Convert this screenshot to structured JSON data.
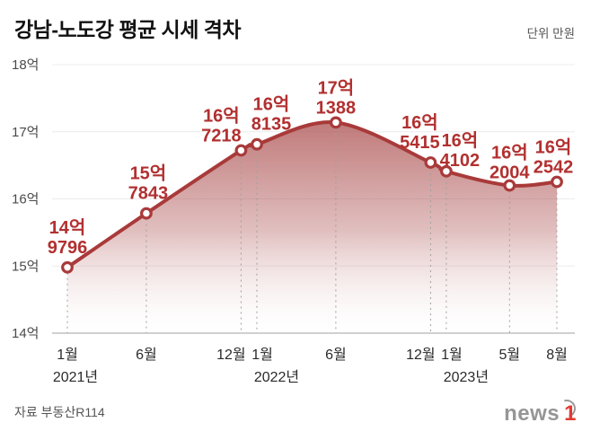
{
  "header": {
    "title": "강남-노도강 평균 시세 격차",
    "unit_label": "단위 만원"
  },
  "footer": {
    "source": "자료 부동산R114",
    "logo": {
      "gray": "news",
      "red": "1"
    }
  },
  "chart_data": {
    "type": "area",
    "title": "강남-노도강 평균 시세 격차",
    "unit": "만원",
    "ylim": [
      140000,
      180000
    ],
    "grid": true,
    "legend": "none",
    "y_ticks": [
      {
        "value": 140000,
        "label": "14억"
      },
      {
        "value": 150000,
        "label": "15억"
      },
      {
        "value": 160000,
        "label": "16억"
      },
      {
        "value": 170000,
        "label": "17억"
      },
      {
        "value": 180000,
        "label": "18억"
      }
    ],
    "points": [
      {
        "month": 0,
        "x_label": "1월",
        "year_label": "2021년",
        "value": 149796,
        "label": [
          "14억",
          "9796"
        ]
      },
      {
        "month": 5,
        "x_label": "6월",
        "value": 157843,
        "label": [
          "15억",
          "7843"
        ]
      },
      {
        "month": 11,
        "x_label": "12월",
        "value": 167218,
        "label": [
          "16억",
          "7218"
        ]
      },
      {
        "month": 12,
        "x_label": "1월",
        "year_label": "2022년",
        "value": 168135,
        "label": [
          "16억",
          "8135"
        ]
      },
      {
        "month": 17,
        "x_label": "6월",
        "value": 171388,
        "label": [
          "17억",
          "1388"
        ]
      },
      {
        "month": 23,
        "x_label": "12월",
        "value": 165415,
        "label": [
          "16억",
          "5415"
        ]
      },
      {
        "month": 24,
        "x_label": "1월",
        "year_label": "2023년",
        "value": 164102,
        "label": [
          "16억",
          "4102"
        ]
      },
      {
        "month": 28,
        "x_label": "5월",
        "value": 162004,
        "label": [
          "16억",
          "2004"
        ]
      },
      {
        "month": 31,
        "x_label": "8월",
        "value": 162542,
        "label": [
          "16억",
          "2542"
        ]
      }
    ],
    "colors": {
      "line": "#a93a3a",
      "label": "#b23030",
      "area_top": "#b05858",
      "area_bottom": "#ffffff",
      "grid": "#ececec",
      "axis": "#b5b5b5",
      "tick_text": "#4a4a4a",
      "x_text": "#2a2a2a"
    }
  }
}
